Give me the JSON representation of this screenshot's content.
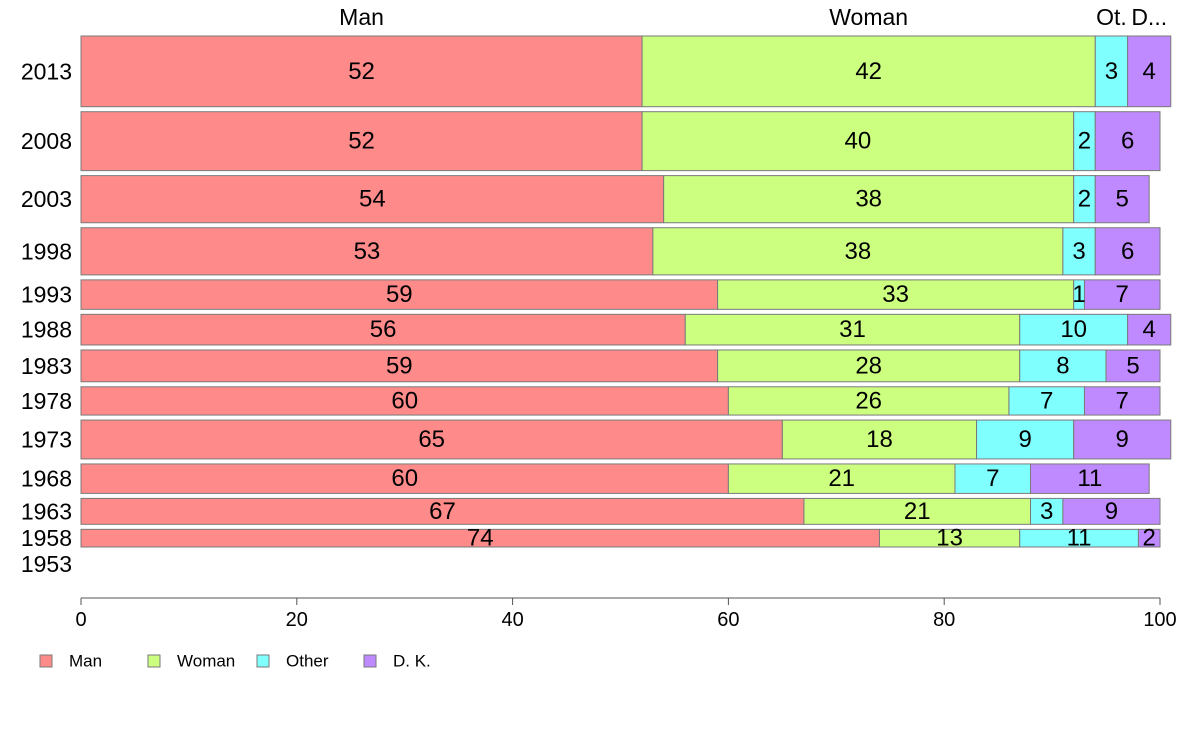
{
  "chart_data": {
    "type": "bar",
    "orientation": "horizontal",
    "stacked": true,
    "variable_bar_width": true,
    "categories": [
      "2013",
      "2008",
      "2003",
      "1998",
      "1993",
      "1988",
      "1983",
      "1978",
      "1973",
      "1968",
      "1963",
      "1958",
      "1953"
    ],
    "bar_weight": [
      6,
      5,
      4,
      4,
      2.5,
      2.6,
      2.7,
      2.4,
      3.3,
      2.5,
      2.2,
      1.5,
      0
    ],
    "series": [
      {
        "name": "Man",
        "color": "#ff8a8a",
        "values": [
          52,
          52,
          54,
          53,
          59,
          56,
          59,
          60,
          65,
          60,
          67,
          74,
          0
        ]
      },
      {
        "name": "Woman",
        "color": "#ccff80",
        "values": [
          42,
          40,
          38,
          38,
          33,
          31,
          28,
          26,
          18,
          21,
          21,
          13,
          0
        ]
      },
      {
        "name": "Other",
        "color": "#80ffff",
        "values": [
          3,
          2,
          2,
          3,
          1,
          10,
          8,
          7,
          9,
          7,
          3,
          11,
          0
        ]
      },
      {
        "name": "D. K.",
        "color": "#bf8aff",
        "values": [
          4,
          6,
          5,
          6,
          7,
          4,
          5,
          7,
          9,
          11,
          9,
          2,
          0
        ]
      }
    ],
    "top_labels": [
      "Man",
      "Woman",
      "Ot.",
      "D..."
    ],
    "xlim": [
      0,
      100
    ],
    "xticks": [
      0,
      20,
      40,
      60,
      80,
      100
    ],
    "title": "",
    "xlabel": "",
    "ylabel": "",
    "grid": false,
    "legend_position": "bottom-left"
  }
}
